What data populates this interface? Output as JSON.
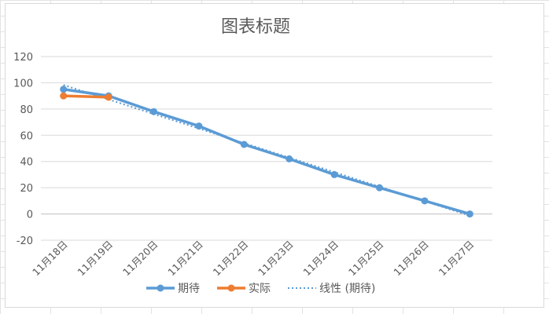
{
  "chart_data": {
    "type": "line",
    "title": "图表标题",
    "categories": [
      "11月18日",
      "11月19日",
      "11月20日",
      "11月21日",
      "11月22日",
      "11月23日",
      "11月24日",
      "11月25日",
      "11月26日",
      "11月27日"
    ],
    "ylim": [
      -20,
      120
    ],
    "yticks": [
      -20,
      0,
      20,
      40,
      60,
      80,
      100,
      120
    ],
    "grid": true,
    "legend_position": "bottom",
    "series": [
      {
        "name": "期待",
        "values": [
          95,
          90,
          78,
          67,
          53,
          42,
          30,
          20,
          10,
          0
        ],
        "color": "#5b9bd5"
      },
      {
        "name": "实际",
        "values": [
          90,
          89,
          null,
          null,
          null,
          null,
          null,
          null,
          null,
          null
        ],
        "color": "#ed7d31"
      }
    ],
    "trendline": {
      "name": "线性 (期待)",
      "of": "期待",
      "type": "linear",
      "style": "dotted",
      "color": "#5b9bd5"
    }
  }
}
